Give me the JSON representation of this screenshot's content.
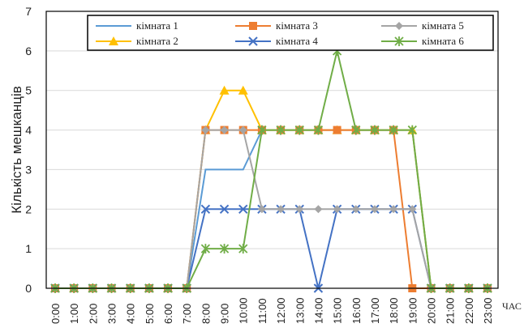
{
  "chart_data": {
    "type": "line",
    "xlabel": "ЧАС",
    "ylabel": "Кількість мешканців",
    "ylim": [
      0,
      7
    ],
    "yticks": [
      0,
      1,
      2,
      3,
      4,
      5,
      6,
      7
    ],
    "grid": "horizontal",
    "legend_position": "top-inside",
    "categories": [
      "0:00",
      "1:00",
      "2:00",
      "3:00",
      "4:00",
      "5:00",
      "6:00",
      "7:00",
      "8:00",
      "9:00",
      "10:00",
      "11:00",
      "12:00",
      "13:00",
      "14:00",
      "15:00",
      "16:00",
      "17:00",
      "18:00",
      "19:00",
      "20:00",
      "21:00",
      "22:00",
      "23:00"
    ],
    "series": [
      {
        "name": "кімната 1",
        "color": "#5b9bd5",
        "marker": "none",
        "values": [
          0,
          0,
          0,
          0,
          0,
          0,
          0,
          0,
          3,
          3,
          3,
          4,
          4,
          4,
          4,
          4,
          4,
          4,
          4,
          4,
          0,
          0,
          0,
          0
        ]
      },
      {
        "name": "кімната 2",
        "color": "#ffc000",
        "marker": "triangle",
        "values": [
          0,
          0,
          0,
          0,
          0,
          0,
          0,
          0,
          4,
          5,
          5,
          4,
          4,
          4,
          4,
          4,
          4,
          4,
          4,
          4,
          0,
          0,
          0,
          0
        ]
      },
      {
        "name": "кімната 3",
        "color": "#ed7d31",
        "marker": "square",
        "values": [
          0,
          0,
          0,
          0,
          0,
          0,
          0,
          0,
          4,
          4,
          4,
          4,
          4,
          4,
          4,
          4,
          4,
          4,
          4,
          0,
          0,
          0,
          0,
          0
        ]
      },
      {
        "name": "кімната 4",
        "color": "#4472c4",
        "marker": "x",
        "values": [
          0,
          0,
          0,
          0,
          0,
          0,
          0,
          0,
          2,
          2,
          2,
          2,
          2,
          2,
          0,
          2,
          2,
          2,
          2,
          2,
          0,
          0,
          0,
          0
        ]
      },
      {
        "name": "кімната 5",
        "color": "#a5a5a5",
        "marker": "diamond",
        "values": [
          0,
          0,
          0,
          0,
          0,
          0,
          0,
          0,
          4,
          4,
          4,
          2,
          2,
          2,
          2,
          2,
          2,
          2,
          2,
          2,
          0,
          0,
          0,
          0
        ]
      },
      {
        "name": "кімната 6",
        "color": "#70ad47",
        "marker": "star",
        "values": [
          0,
          0,
          0,
          0,
          0,
          0,
          0,
          0,
          1,
          1,
          1,
          4,
          4,
          4,
          4,
          6,
          4,
          4,
          4,
          4,
          0,
          0,
          0,
          0
        ]
      }
    ]
  }
}
